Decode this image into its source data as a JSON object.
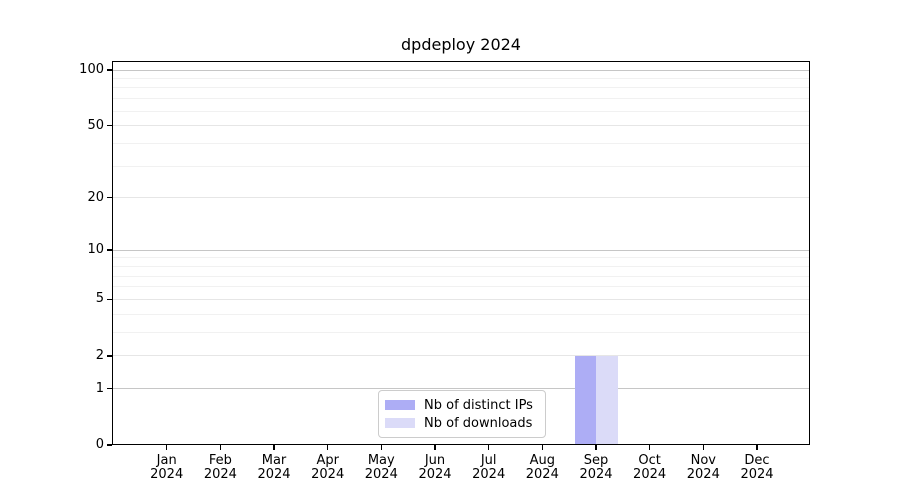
{
  "figure": {
    "title": "dpdeploy 2024"
  },
  "chart_data": {
    "type": "bar",
    "title": "dpdeploy 2024",
    "x": {
      "categories": [
        "Jan",
        "Feb",
        "Mar",
        "Apr",
        "May",
        "Jun",
        "Jul",
        "Aug",
        "Sep",
        "Oct",
        "Nov",
        "Dec"
      ],
      "year": "2024"
    },
    "y": {
      "scale": "symlog (log1p)",
      "tick_values": [
        0,
        1,
        2,
        5,
        10,
        20,
        50,
        100
      ],
      "tick_labels": [
        "0",
        "1",
        "2",
        "5",
        "10",
        "20",
        "50",
        "100"
      ],
      "major_grid_values": [
        1,
        10,
        100
      ],
      "minor_grid_values": [
        3,
        4,
        6,
        7,
        8,
        9,
        30,
        40,
        60,
        70,
        80,
        90
      ],
      "range": [
        0,
        112
      ],
      "grid": true
    },
    "series": [
      {
        "name": "Nb of distinct IPs",
        "color": "#adadf5",
        "values": [
          0,
          0,
          0,
          0,
          0,
          0,
          0,
          0,
          2,
          0,
          0,
          0
        ]
      },
      {
        "name": "Nb of downloads",
        "color": "#dbdbf8",
        "values": [
          0,
          0,
          0,
          0,
          0,
          0,
          0,
          0,
          2,
          0,
          0,
          0
        ]
      }
    ],
    "legend": {
      "position": "lower center",
      "entries": [
        "Nb of distinct IPs",
        "Nb of downloads"
      ]
    }
  },
  "colors": {
    "background": "#ffffff",
    "text": "#000000",
    "spine": "#000000",
    "grid_major": "#c6c6c6",
    "grid_sub": "#e6e6e6",
    "grid_minor": "#f1f1f1",
    "legend_border": "#cccccc"
  }
}
